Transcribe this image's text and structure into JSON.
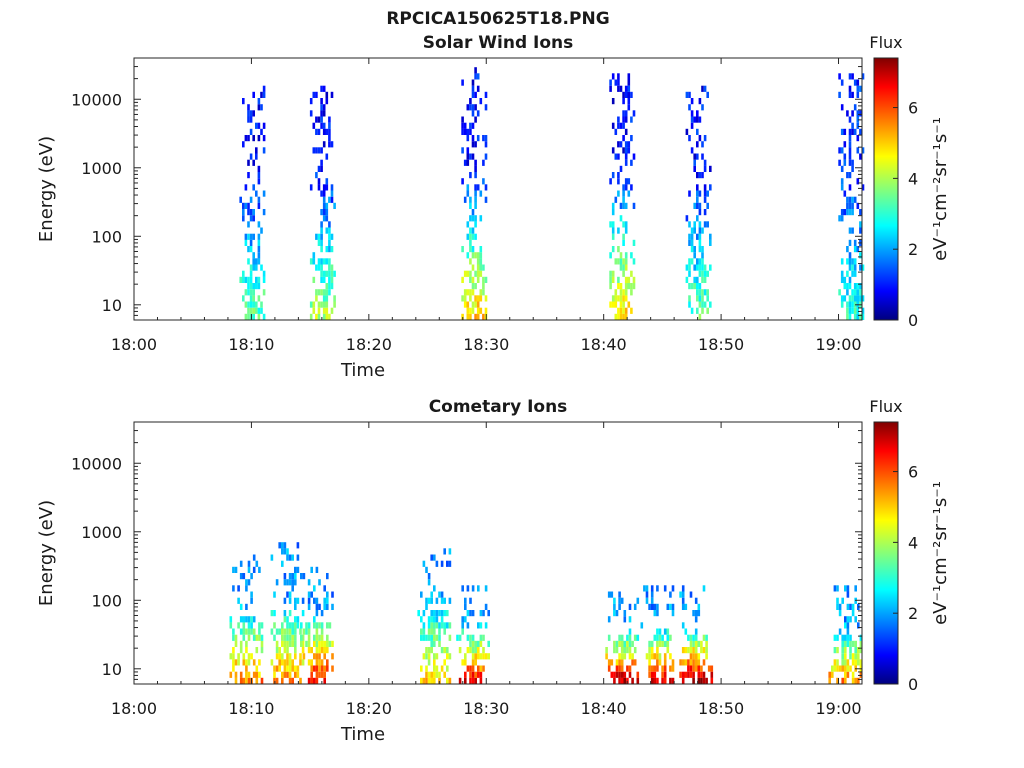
{
  "figure_title": "RPCICA150625T18.PNG",
  "colorbar_scale": "jet",
  "chart_data": [
    {
      "type": "heatmap",
      "title": "Solar Wind Ions",
      "xlabel": "Time",
      "ylabel": "Energy (eV)",
      "x_ticks": [
        "18:00",
        "18:10",
        "18:20",
        "18:30",
        "18:40",
        "18:50",
        "19:00"
      ],
      "x_range_minutes": [
        0,
        62
      ],
      "y_ticks": [
        "10",
        "100",
        "1000",
        "10000"
      ],
      "y_scale": "log",
      "y_range": [
        6,
        40000
      ],
      "colorbar": {
        "label": "eV⁻¹cm⁻²sr⁻¹s⁻¹",
        "header": "Flux",
        "range": [
          0,
          7.4
        ],
        "ticks": [
          "0",
          "2",
          "4",
          "6"
        ]
      },
      "bursts": [
        {
          "t_minutes": 10.0,
          "e_min": 6,
          "e_max": 14000,
          "flux_low_energy": 3.5,
          "flux_high_energy": 1.0
        },
        {
          "t_minutes": 16.0,
          "e_min": 6,
          "e_max": 15000,
          "flux_low_energy": 4.0,
          "flux_high_energy": 1.0
        },
        {
          "t_minutes": 28.9,
          "e_min": 6,
          "e_max": 25000,
          "flux_low_energy": 5.0,
          "flux_high_energy": 1.0
        },
        {
          "t_minutes": 41.5,
          "e_min": 6,
          "e_max": 20000,
          "flux_low_energy": 5.0,
          "flux_high_energy": 1.0
        },
        {
          "t_minutes": 48.0,
          "e_min": 6,
          "e_max": 15000,
          "flux_low_energy": 3.5,
          "flux_high_energy": 1.0
        },
        {
          "t_minutes": 61.0,
          "e_min": 6,
          "e_max": 20000,
          "flux_low_energy": 3.0,
          "flux_high_energy": 1.2
        }
      ]
    },
    {
      "type": "heatmap",
      "title": "Cometary Ions",
      "xlabel": "Time",
      "ylabel": "Energy (eV)",
      "x_ticks": [
        "18:00",
        "18:10",
        "18:20",
        "18:30",
        "18:40",
        "18:50",
        "19:00"
      ],
      "x_range_minutes": [
        0,
        62
      ],
      "y_ticks": [
        "10",
        "100",
        "1000",
        "10000"
      ],
      "y_scale": "log",
      "y_range": [
        6,
        40000
      ],
      "colorbar": {
        "label": "eV⁻¹cm⁻²sr⁻¹s⁻¹",
        "header": "Flux",
        "range": [
          0,
          7.4
        ],
        "ticks": [
          "0",
          "2",
          "4",
          "6"
        ]
      },
      "bursts": [
        {
          "t_minutes": 9.5,
          "e_min": 6,
          "e_max": 400,
          "flux_low_energy": 5.5,
          "flux_high_energy": 2.0
        },
        {
          "t_minutes": 13.0,
          "e_min": 6,
          "e_max": 600,
          "flux_low_energy": 5.5,
          "flux_high_energy": 2.0
        },
        {
          "t_minutes": 15.5,
          "e_min": 6,
          "e_max": 300,
          "flux_low_energy": 6.5,
          "flux_high_energy": 2.0
        },
        {
          "t_minutes": 25.5,
          "e_min": 6,
          "e_max": 600,
          "flux_low_energy": 5.0,
          "flux_high_energy": 2.0
        },
        {
          "t_minutes": 28.8,
          "e_min": 6,
          "e_max": 150,
          "flux_low_energy": 6.5,
          "flux_high_energy": 2.0
        },
        {
          "t_minutes": 41.5,
          "e_min": 6,
          "e_max": 120,
          "flux_low_energy": 7.0,
          "flux_high_energy": 2.0
        },
        {
          "t_minutes": 44.5,
          "e_min": 6,
          "e_max": 150,
          "flux_low_energy": 6.5,
          "flux_high_energy": 2.0
        },
        {
          "t_minutes": 47.8,
          "e_min": 6,
          "e_max": 150,
          "flux_low_energy": 7.0,
          "flux_high_energy": 2.0
        },
        {
          "t_minutes": 60.5,
          "e_min": 6,
          "e_max": 150,
          "flux_low_energy": 5.5,
          "flux_high_energy": 2.0
        }
      ]
    }
  ]
}
